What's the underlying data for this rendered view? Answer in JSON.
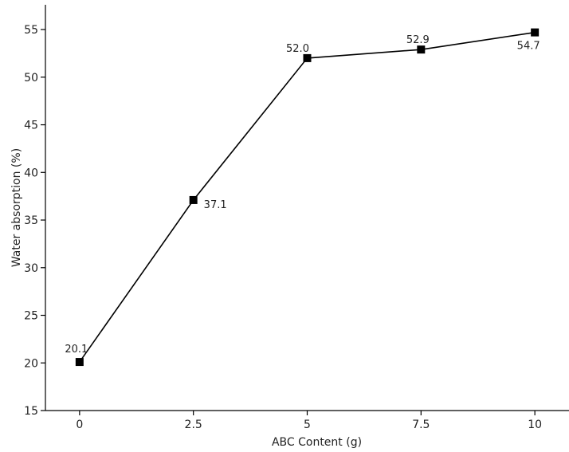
{
  "chart_data": {
    "type": "line",
    "x": [
      0,
      2.5,
      5,
      7.5,
      10
    ],
    "series": [
      {
        "values": [
          20.1,
          37.1,
          52.0,
          52.9,
          54.7
        ],
        "data_labels": [
          "20.1",
          "37.1",
          "52.0",
          "52.9",
          "54.7"
        ],
        "marker": "square",
        "color": "#000000"
      }
    ],
    "x_tick_labels": [
      "0",
      "2.5",
      "5",
      "7.5",
      "10"
    ],
    "y_tick_labels": [
      "15",
      "20",
      "25",
      "30",
      "35",
      "40",
      "45",
      "50",
      "55"
    ],
    "y_ticks": [
      15,
      20,
      25,
      30,
      35,
      40,
      45,
      50,
      55
    ],
    "xlabel": "ABC Content (g)",
    "ylabel": "Water absorption (%)",
    "xlim": [
      -0.75,
      10.75
    ],
    "ylim": [
      15,
      57.6
    ],
    "grid": false
  }
}
